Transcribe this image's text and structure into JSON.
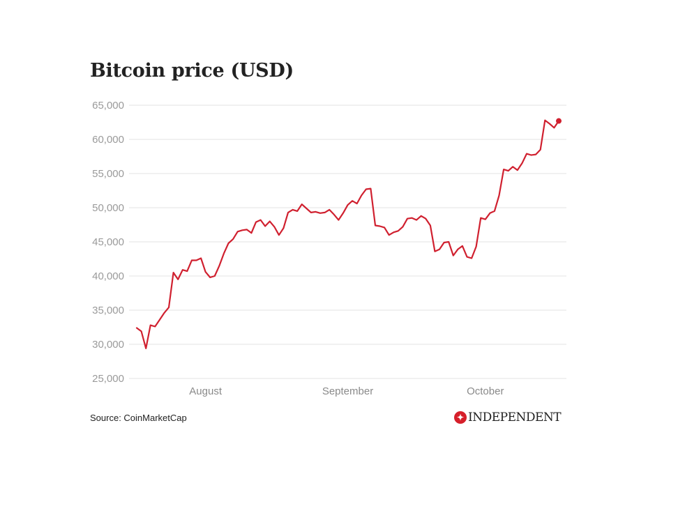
{
  "chart_data": {
    "type": "line",
    "title": "Bitcoin price (USD)",
    "xlabel": "",
    "ylabel": "",
    "ylim": [
      25000,
      65000
    ],
    "yticks": [
      25000,
      30000,
      35000,
      40000,
      45000,
      50000,
      55000,
      60000,
      65000
    ],
    "ytick_labels": [
      "25,000",
      "30,000",
      "35,000",
      "40,000",
      "45,000",
      "50,000",
      "55,000",
      "60,000",
      "65,000"
    ],
    "xtick_labels": [
      "August",
      "September",
      "October"
    ],
    "xtick_index": [
      15,
      46,
      76
    ],
    "grid": true,
    "legend": "none",
    "series": [
      {
        "name": "Bitcoin price",
        "color": "#d0202f",
        "end_marker": true,
        "values": [
          32400,
          31900,
          29400,
          32800,
          32600,
          33600,
          34600,
          35400,
          40500,
          39500,
          40900,
          40700,
          42300,
          42300,
          42600,
          40600,
          39800,
          40000,
          41500,
          43300,
          44800,
          45400,
          46500,
          46700,
          46800,
          46300,
          47900,
          48200,
          47300,
          48000,
          47200,
          46000,
          47000,
          49300,
          49700,
          49500,
          50500,
          49900,
          49300,
          49400,
          49200,
          49300,
          49700,
          49000,
          48200,
          49200,
          50400,
          51000,
          50600,
          51800,
          52700,
          52800,
          47400,
          47300,
          47100,
          46000,
          46400,
          46600,
          47200,
          48400,
          48500,
          48200,
          48800,
          48400,
          47400,
          43600,
          43900,
          44900,
          45000,
          43000,
          43900,
          44400,
          42800,
          42600,
          44300,
          48500,
          48300,
          49200,
          49500,
          51800,
          55600,
          55400,
          56000,
          55500,
          56500,
          57900,
          57700,
          57800,
          58500,
          62800,
          62300,
          61700,
          62700
        ]
      }
    ]
  },
  "footer": {
    "source": "Source: CoinMarketCap",
    "logo_text": "INDEPENDENT",
    "logo_icon": "eagle-icon"
  }
}
